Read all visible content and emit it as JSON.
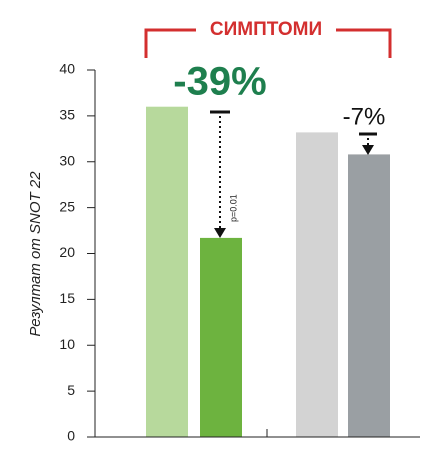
{
  "chart_data": {
    "type": "bar",
    "header": "СИМПТОМИ",
    "y_label": "Резултат от SNOT 22",
    "categories": [
      null,
      null,
      null,
      null
    ],
    "values": [
      36,
      21.7,
      33.2,
      30.8
    ],
    "colors": [
      "#b7d99c",
      "#6db33f",
      "#d3d3d3",
      "#9a9fa3"
    ],
    "ylim": [
      0,
      40
    ],
    "yticks": [
      0,
      5,
      10,
      15,
      20,
      25,
      30,
      35,
      40
    ],
    "annotations": [
      "-39%",
      "p=0.01",
      "-7%"
    ]
  }
}
